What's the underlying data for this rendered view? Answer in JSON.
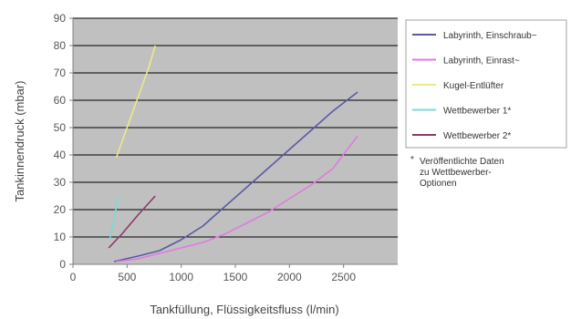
{
  "chart_data": {
    "type": "line",
    "xlabel": "Tankfüllung, Flüssigkeitsfluss (l/min)",
    "ylabel": "Tankinnendruck (mbar)",
    "xlim": [
      0,
      3000
    ],
    "ylim": [
      0,
      90
    ],
    "xticks": [
      0,
      500,
      1000,
      1500,
      2000,
      2500
    ],
    "xtick_labels": [
      "0",
      "500",
      "1000",
      "1500",
      "2000",
      "2500"
    ],
    "yticks": [
      0,
      10,
      20,
      30,
      40,
      50,
      60,
      70,
      80,
      90
    ],
    "ytick_labels": [
      "0",
      "10",
      "20",
      "30",
      "40",
      "50",
      "60",
      "70",
      "80",
      "90"
    ],
    "grid": "horizontal",
    "plot_background": "#c0c0c0",
    "legend_position": "right",
    "series": [
      {
        "name": "Labyrinth, Einschraub~",
        "color": "#5a5aa6",
        "x": [
          380,
          600,
          800,
          1000,
          1200,
          1400,
          1600,
          1800,
          2000,
          2200,
          2400,
          2630
        ],
        "y": [
          1,
          3,
          5,
          9,
          14,
          21,
          28,
          35,
          42,
          49,
          56,
          63
        ]
      },
      {
        "name": "Labyrinth, Einrast~",
        "color": "#e07ae0",
        "x": [
          400,
          600,
          800,
          1000,
          1200,
          1400,
          1600,
          1800,
          2000,
          2200,
          2400,
          2630
        ],
        "y": [
          1,
          2,
          4,
          6,
          8,
          11,
          15,
          19,
          24,
          29,
          35,
          47
        ]
      },
      {
        "name": "Kugel-Entlüfter",
        "color": "#eaea8a",
        "x": [
          400,
          500,
          600,
          700,
          760
        ],
        "y": [
          39,
          50,
          61,
          72,
          80
        ]
      },
      {
        "name": "Wettbewerber 1*",
        "color": "#7ed8d8",
        "x": [
          340,
          380,
          420
        ],
        "y": [
          9,
          17,
          25
        ]
      },
      {
        "name": "Wettbewerber 2*",
        "color": "#8a3a6a",
        "x": [
          330,
          450,
          600,
          760
        ],
        "y": [
          6,
          11,
          18,
          25
        ]
      }
    ],
    "note": {
      "marker": "*",
      "lines": [
        "Veröffentlichte Daten",
        "zu Wettbewerber-",
        "Optionen"
      ]
    }
  }
}
